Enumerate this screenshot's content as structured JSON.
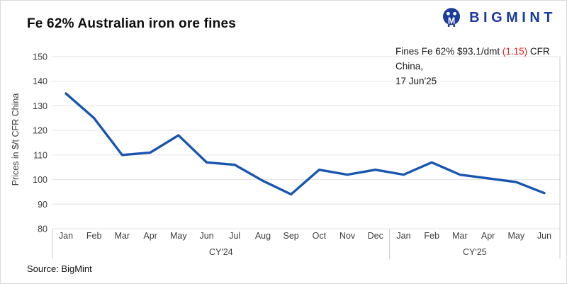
{
  "header": {
    "title": "Fe 62% Australian iron ore fines",
    "brand": "BIGMINT"
  },
  "annotation": {
    "prefix": "Fines Fe 62% $93.1/dmt ",
    "change": "(1.15)",
    "suffix": " CFR China,",
    "date_line": "17 Jun'25",
    "change_color": "#e8201f"
  },
  "source": "Source: BigMint",
  "chart_data": {
    "type": "line",
    "title": "Fe 62% Australian iron ore fines",
    "ylabel": "Prices in $/t CFR China",
    "ylim": [
      80,
      150
    ],
    "yticks": [
      150,
      140,
      130,
      120,
      110,
      100,
      90,
      80
    ],
    "grid": true,
    "legend": "none",
    "groups": [
      {
        "label": "CY'24",
        "months": [
          "Jan",
          "Feb",
          "Mar",
          "Apr",
          "May",
          "Jun",
          "Jul",
          "Aug",
          "Sep",
          "Oct",
          "Nov",
          "Dec"
        ]
      },
      {
        "label": "CY'25",
        "months": [
          "Jan",
          "Feb",
          "Mar",
          "Apr",
          "May",
          "Jun"
        ]
      }
    ],
    "series": [
      {
        "name": "Fines Fe 62% CFR China",
        "values": [
          135,
          125,
          110,
          111,
          118,
          107,
          106,
          99.5,
          94,
          104,
          102,
          104,
          102,
          107,
          102,
          100.5,
          99,
          94.5
        ]
      }
    ],
    "line_color": "#1956b0",
    "grid_color": "#e3e3e3",
    "axis_color": "#cccccc"
  }
}
